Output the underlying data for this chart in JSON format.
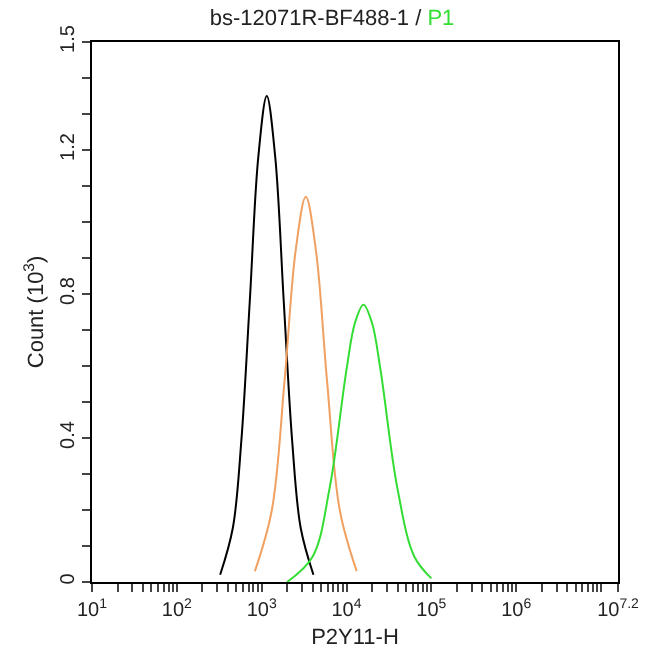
{
  "chart_data": {
    "type": "line",
    "title": "bs-12071R-BF488-1 /",
    "xlabel": "P2Y11-H",
    "ylabel": "Count (10$^{3}$)",
    "log": "x",
    "legend": false,
    "marker": "none",
    "line_style": "solid",
    "xlim": [
      10,
      15848932
    ],
    "ylim": [
      0,
      1.5
    ],
    "xticks": [
      {
        "value": 10,
        "label": "10$^{1}$"
      },
      {
        "value": 20,
        "label": null
      },
      {
        "value": 30,
        "label": null
      },
      {
        "value": 40,
        "label": null
      },
      {
        "value": 50,
        "label": null
      },
      {
        "value": 60,
        "label": null
      },
      {
        "value": 70,
        "label": null
      },
      {
        "value": 80,
        "label": null
      },
      {
        "value": 90,
        "label": null
      },
      {
        "value": 100,
        "label": "10$^{2}$"
      },
      {
        "value": 200,
        "label": null
      },
      {
        "value": 300,
        "label": null
      },
      {
        "value": 400,
        "label": null
      },
      {
        "value": 500,
        "label": null
      },
      {
        "value": 600,
        "label": null
      },
      {
        "value": 700,
        "label": null
      },
      {
        "value": 800,
        "label": null
      },
      {
        "value": 900,
        "label": null
      },
      {
        "value": 1000,
        "label": "10$^{3}$"
      },
      {
        "value": 2000,
        "label": null
      },
      {
        "value": 3000,
        "label": null
      },
      {
        "value": 4000,
        "label": null
      },
      {
        "value": 5000,
        "label": null
      },
      {
        "value": 6000,
        "label": null
      },
      {
        "value": 7000,
        "label": null
      },
      {
        "value": 8000,
        "label": null
      },
      {
        "value": 9000,
        "label": null
      },
      {
        "value": 10000,
        "label": "10$^{4}$"
      },
      {
        "value": 20000,
        "label": null
      },
      {
        "value": 30000,
        "label": null
      },
      {
        "value": 40000,
        "label": null
      },
      {
        "value": 50000,
        "label": null
      },
      {
        "value": 60000,
        "label": null
      },
      {
        "value": 70000,
        "label": null
      },
      {
        "value": 80000,
        "label": null
      },
      {
        "value": 90000,
        "label": null
      },
      {
        "value": 100000,
        "label": "10$^{5}$"
      },
      {
        "value": 200000,
        "label": null
      },
      {
        "value": 300000,
        "label": null
      },
      {
        "value": 400000,
        "label": null
      },
      {
        "value": 500000,
        "label": null
      },
      {
        "value": 600000,
        "label": null
      },
      {
        "value": 700000,
        "label": null
      },
      {
        "value": 800000,
        "label": null
      },
      {
        "value": 900000,
        "label": null
      },
      {
        "value": 1000000,
        "label": "10$^{6}$"
      },
      {
        "value": 2000000,
        "label": null
      },
      {
        "value": 3000000,
        "label": null
      },
      {
        "value": 4000000,
        "label": null
      },
      {
        "value": 5000000,
        "label": null
      },
      {
        "value": 6000000,
        "label": null
      },
      {
        "value": 7000000,
        "label": null
      },
      {
        "value": 8000000,
        "label": null
      },
      {
        "value": 9000000,
        "label": null
      },
      {
        "value": 10000000,
        "label": null
      },
      {
        "value": 15848932,
        "label": "10$^{7.2}$"
      }
    ],
    "yticks": [
      0,
      {
        "value": 0.1,
        "label": null
      },
      {
        "value": 0.2,
        "label": null
      },
      {
        "value": 0.3,
        "label": null
      },
      0.4,
      {
        "value": 0.5,
        "label": null
      },
      {
        "value": 0.6,
        "label": null
      },
      {
        "value": 0.7,
        "label": null
      },
      0.8,
      {
        "value": 0.9,
        "label": null
      },
      {
        "value": 1.0,
        "label": null
      },
      {
        "value": 1.1,
        "label": null
      },
      1.2,
      {
        "value": 1.3,
        "label": null
      },
      {
        "value": 1.4,
        "label": null
      },
      1.5
    ],
    "series": [
      {
        "color": "#000000",
        "x": [
          324,
          457,
          575,
          724,
          912,
          1148,
          1445,
          1820,
          2291,
          2884,
          4074
        ],
        "values": [
          0.02,
          0.15,
          0.39,
          0.78,
          1.18,
          1.35,
          1.18,
          0.78,
          0.39,
          0.15,
          0.02
        ]
      },
      {
        "color": "#f0a060",
        "x": [
          832,
          1318,
          1862,
          2512,
          3311,
          4365,
          5888,
          8318,
          13183
        ],
        "values": [
          0.03,
          0.2,
          0.56,
          0.92,
          1.07,
          0.92,
          0.56,
          0.2,
          0.03
        ]
      },
      {
        "name": "P1",
        "color": "#33dd33",
        "x": [
          1995,
          3981,
          6310,
          10000,
          12589,
          15849,
          19953,
          25119,
          39811,
          63096,
          100000
        ],
        "values": [
          0.0,
          0.07,
          0.26,
          0.59,
          0.72,
          0.77,
          0.72,
          0.59,
          0.26,
          0.07,
          0.01
        ]
      }
    ]
  }
}
